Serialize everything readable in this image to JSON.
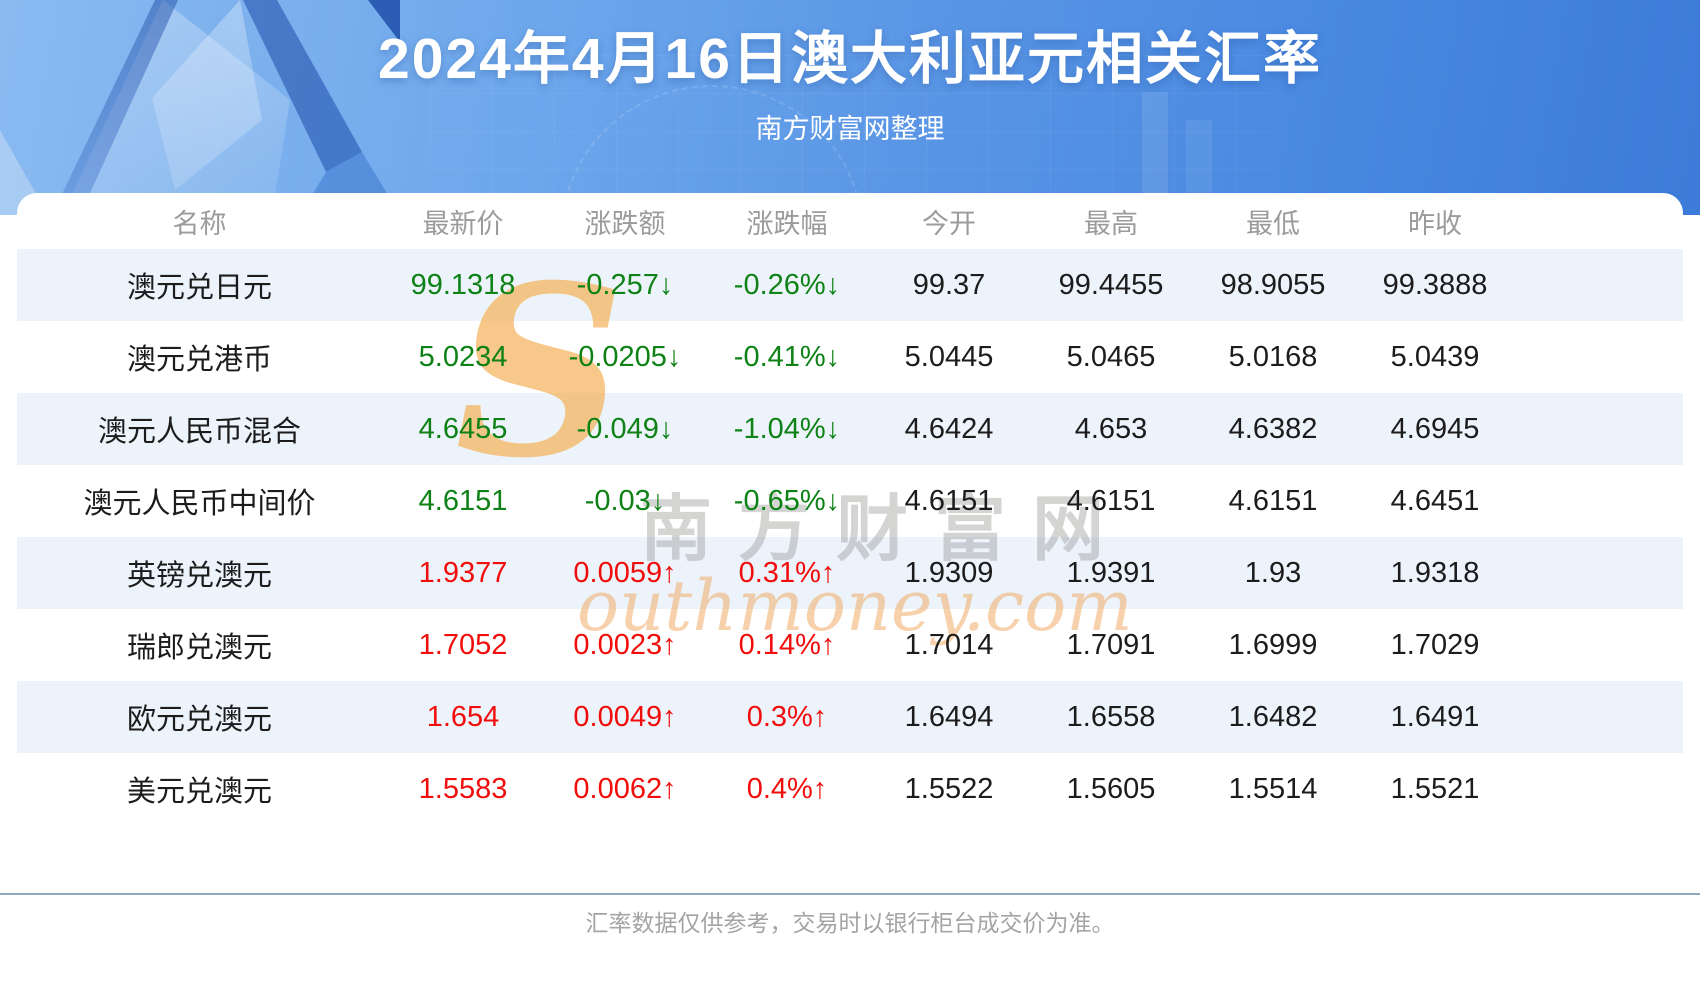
{
  "page": {
    "title": "2024年4月16日澳大利亚元相关汇率",
    "subtitle": "南方财富网整理",
    "footer_note": "汇率数据仅供参考，交易时以银行柜台成交价为准。"
  },
  "watermark": {
    "initial": "S",
    "cn": "南方财富网",
    "en": "outhmoney.com"
  },
  "colors": {
    "up_red": "#f20d0d",
    "down_green": "#0e8216",
    "row_stripe": "#edf3fa",
    "header_text_gray": "#9b9b9b",
    "hero_blue": "#5995e5",
    "watermark_orange": "#f0a860"
  },
  "table": {
    "columns": [
      "名称",
      "最新价",
      "涨跌额",
      "涨跌幅",
      "今开",
      "最高",
      "最低",
      "昨收"
    ],
    "rows": [
      {
        "name": "澳元兑日元",
        "last": "99.1318",
        "change": "-0.257↓",
        "pct": "-0.26%↓",
        "open": "99.37",
        "high": "99.4455",
        "low": "98.9055",
        "prev": "99.3888",
        "trend": "down"
      },
      {
        "name": "澳元兑港币",
        "last": "5.0234",
        "change": "-0.0205↓",
        "pct": "-0.41%↓",
        "open": "5.0445",
        "high": "5.0465",
        "low": "5.0168",
        "prev": "5.0439",
        "trend": "down"
      },
      {
        "name": "澳元人民币混合",
        "last": "4.6455",
        "change": "-0.049↓",
        "pct": "-1.04%↓",
        "open": "4.6424",
        "high": "4.653",
        "low": "4.6382",
        "prev": "4.6945",
        "trend": "down"
      },
      {
        "name": "澳元人民币中间价",
        "last": "4.6151",
        "change": "-0.03↓",
        "pct": "-0.65%↓",
        "open": "4.6151",
        "high": "4.6151",
        "low": "4.6151",
        "prev": "4.6451",
        "trend": "down"
      },
      {
        "name": "英镑兑澳元",
        "last": "1.9377",
        "change": "0.0059↑",
        "pct": "0.31%↑",
        "open": "1.9309",
        "high": "1.9391",
        "low": "1.93",
        "prev": "1.9318",
        "trend": "up"
      },
      {
        "name": "瑞郎兑澳元",
        "last": "1.7052",
        "change": "0.0023↑",
        "pct": "0.14%↑",
        "open": "1.7014",
        "high": "1.7091",
        "low": "1.6999",
        "prev": "1.7029",
        "trend": "up"
      },
      {
        "name": "欧元兑澳元",
        "last": "1.654",
        "change": "0.0049↑",
        "pct": "0.3%↑",
        "open": "1.6494",
        "high": "1.6558",
        "low": "1.6482",
        "prev": "1.6491",
        "trend": "up"
      },
      {
        "name": "美元兑澳元",
        "last": "1.5583",
        "change": "0.0062↑",
        "pct": "0.4%↑",
        "open": "1.5522",
        "high": "1.5605",
        "low": "1.5514",
        "prev": "1.5521",
        "trend": "up"
      }
    ]
  },
  "chart_data": {
    "type": "table",
    "title": "2024年4月16日澳大利亚元相关汇率",
    "subtitle": "南方财富网整理",
    "columns": [
      "名称",
      "最新价",
      "涨跌额",
      "涨跌幅",
      "今开",
      "最高",
      "最低",
      "昨收"
    ],
    "rows": [
      [
        "澳元兑日元",
        "99.1318",
        "-0.257↓",
        "-0.26%↓",
        "99.37",
        "99.4455",
        "98.9055",
        "99.3888"
      ],
      [
        "澳元兑港币",
        "5.0234",
        "-0.0205↓",
        "-0.41%↓",
        "5.0445",
        "5.0465",
        "5.0168",
        "5.0439"
      ],
      [
        "澳元人民币混合",
        "4.6455",
        "-0.049↓",
        "-1.04%↓",
        "4.6424",
        "4.653",
        "4.6382",
        "4.6945"
      ],
      [
        "澳元人民币中间价",
        "4.6151",
        "-0.03↓",
        "-0.65%↓",
        "4.6151",
        "4.6151",
        "4.6151",
        "4.6451"
      ],
      [
        "英镑兑澳元",
        "1.9377",
        "0.0059↑",
        "0.31%↑",
        "1.9309",
        "1.9391",
        "1.93",
        "1.9318"
      ],
      [
        "瑞郎兑澳元",
        "1.7052",
        "0.0023↑",
        "0.14%↑",
        "1.7014",
        "1.7091",
        "1.6999",
        "1.7029"
      ],
      [
        "欧元兑澳元",
        "1.654",
        "0.0049↑",
        "0.3%↑",
        "1.6494",
        "1.6558",
        "1.6482",
        "1.6491"
      ],
      [
        "美元兑澳元",
        "1.5583",
        "0.0062↑",
        "0.4%↑",
        "1.5522",
        "1.5605",
        "1.5514",
        "1.5521"
      ]
    ],
    "note": "汇率数据仅供参考，交易时以银行柜台成交价为准。"
  }
}
